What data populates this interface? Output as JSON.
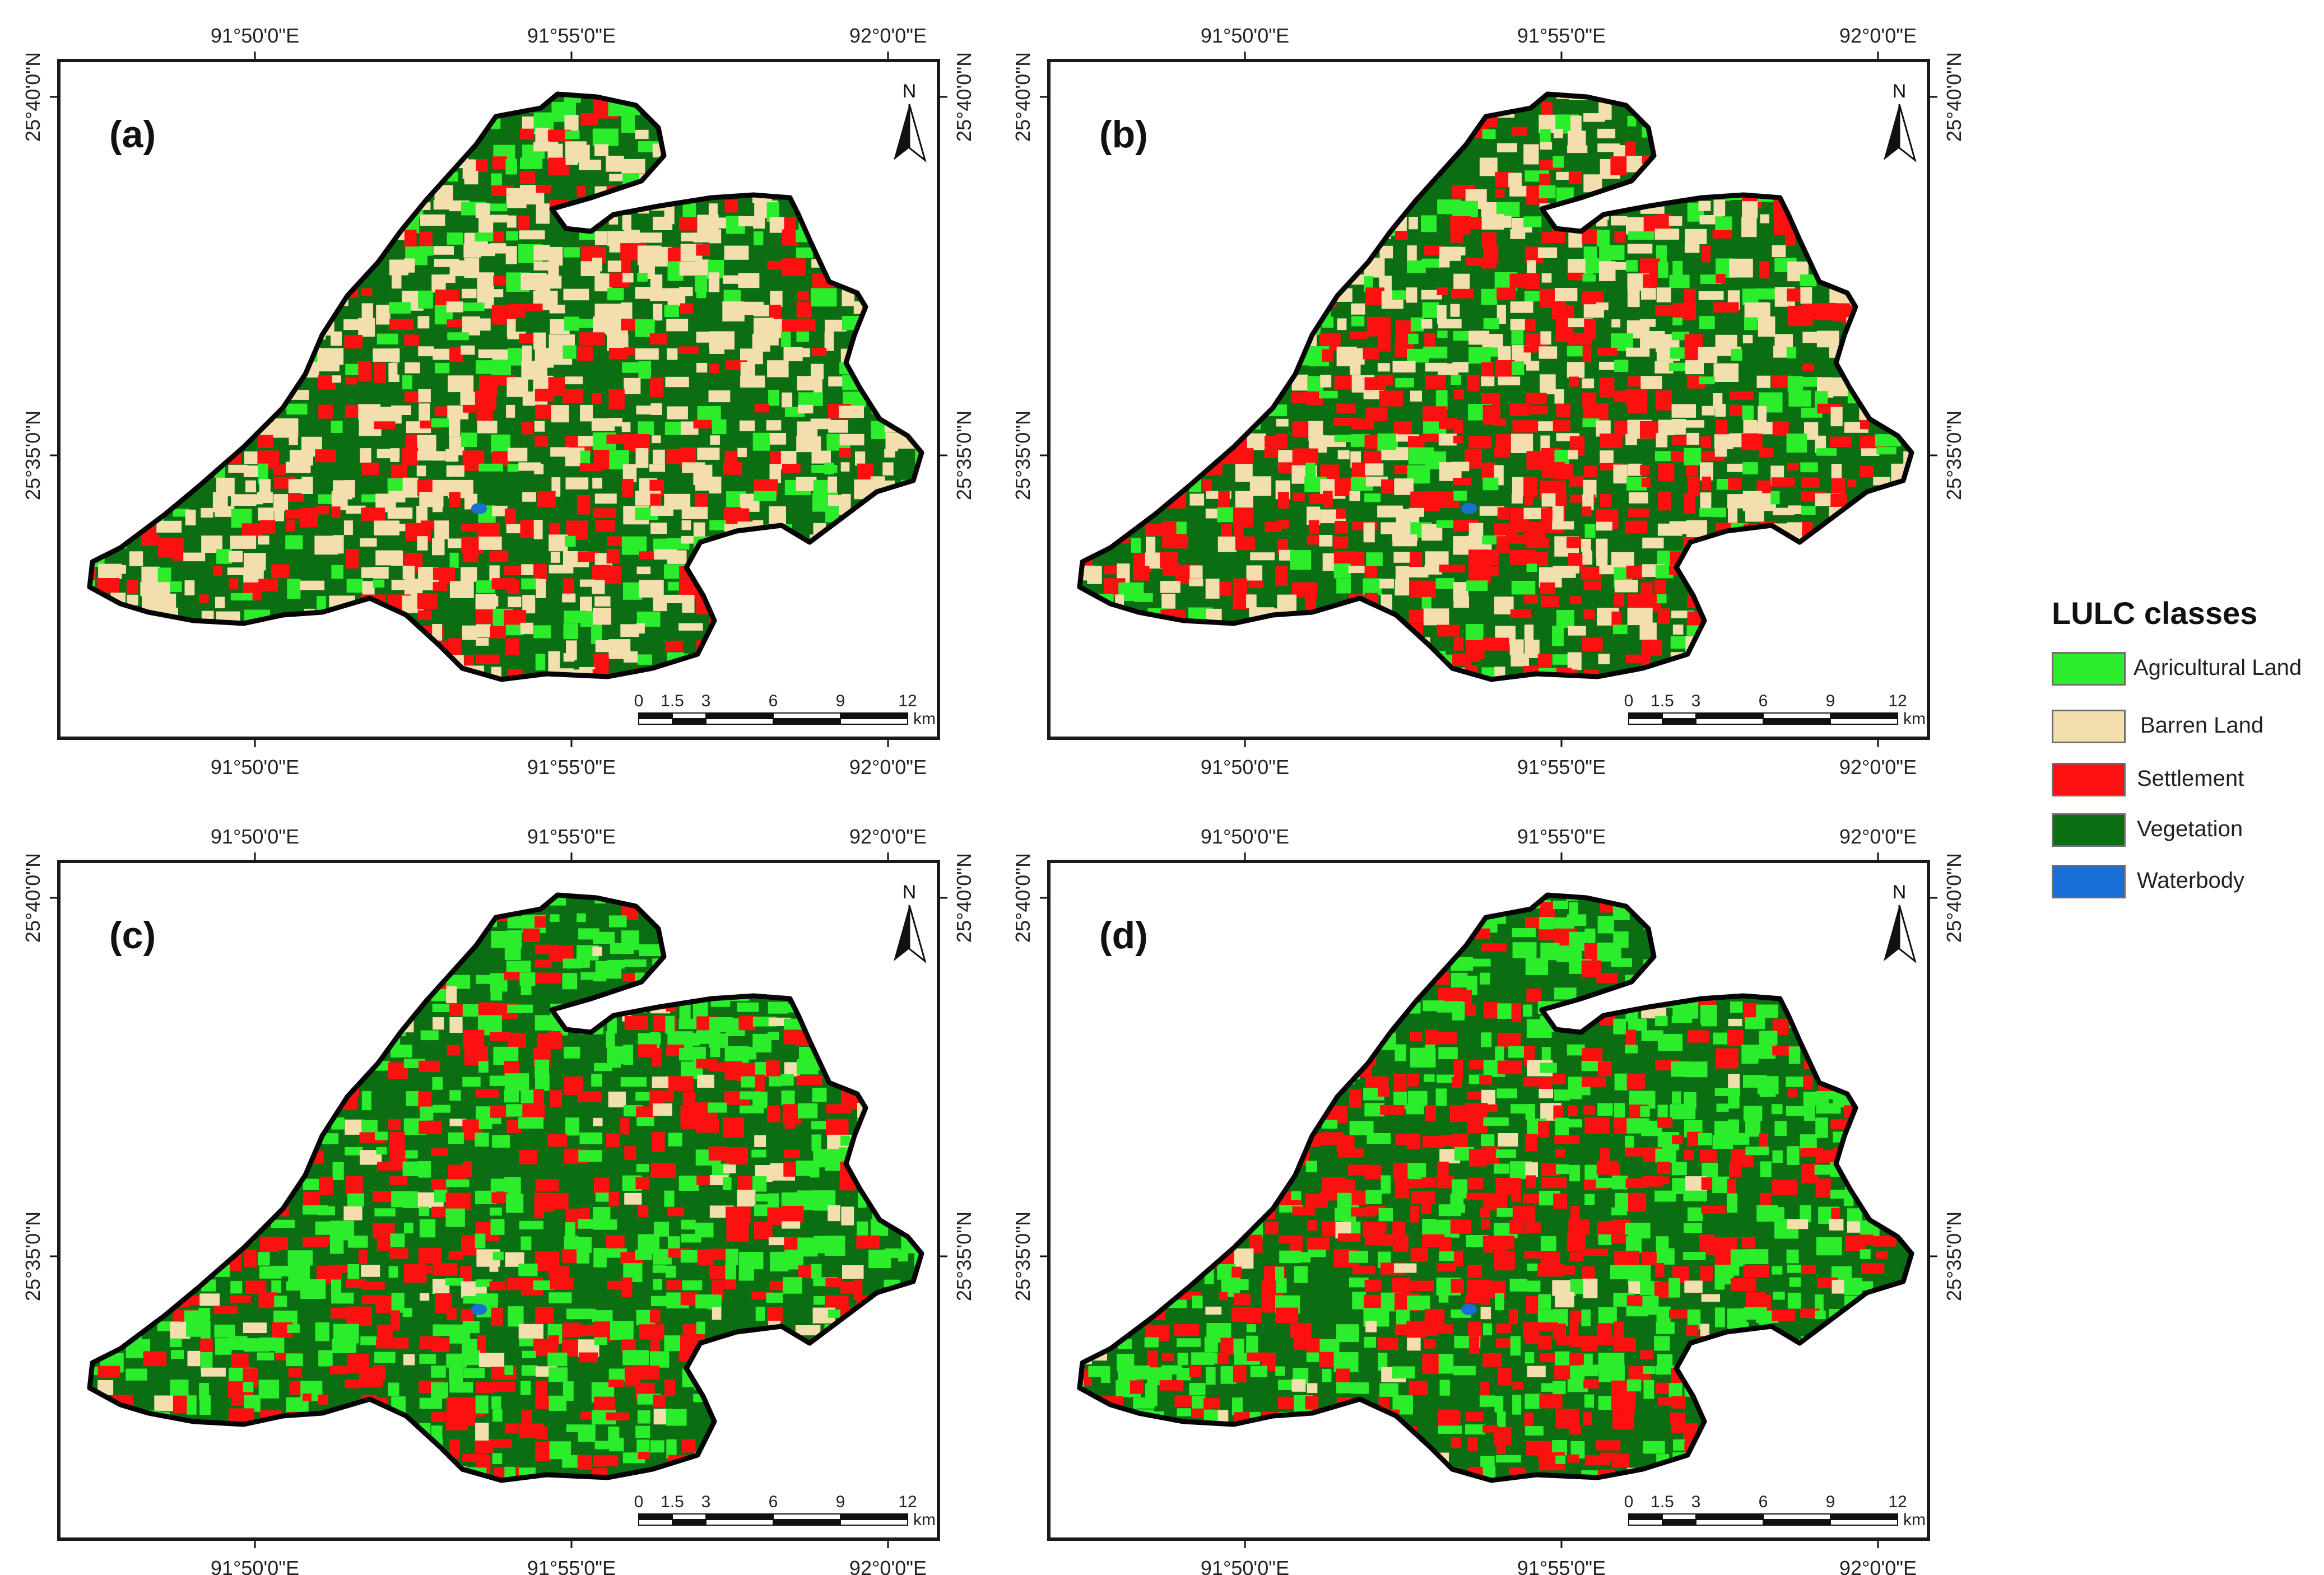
{
  "colors": {
    "agricultural_land": "#2ced2c",
    "barren_land": "#f2dfad",
    "settlement": "#ff1010",
    "vegetation": "#0c6e12",
    "waterbody": "#1a6fd6",
    "frame": "#1a1a1a",
    "outline": "#050505"
  },
  "legend": {
    "title": "LULC classes",
    "items": [
      {
        "label": "Agricultural Land",
        "class": "agricultural_land"
      },
      {
        "label": "Barren Land",
        "class": "barren_land"
      },
      {
        "label": "Settlement",
        "class": "settlement"
      },
      {
        "label": "Vegetation",
        "class": "vegetation"
      },
      {
        "label": "Waterbody",
        "class": "waterbody"
      }
    ]
  },
  "graticule": {
    "longitude_labels": [
      "91°50'0\"E",
      "91°55'0\"E",
      "92°0'0\"E"
    ],
    "latitude_labels": [
      "25°40'0\"N",
      "25°35'0\"N"
    ]
  },
  "scale_bar": {
    "ticks": [
      "0",
      "1.5",
      "3",
      "6",
      "9",
      "12"
    ],
    "unit": "km"
  },
  "north_arrow": "N",
  "panels": [
    {
      "label": "(a)",
      "mix": {
        "agricultural_land": 0.14,
        "barren_land": 0.33,
        "settlement": 0.1,
        "vegetation": 0.43
      }
    },
    {
      "label": "(b)",
      "mix": {
        "agricultural_land": 0.16,
        "barren_land": 0.25,
        "settlement": 0.14,
        "vegetation": 0.45
      }
    },
    {
      "label": "(c)",
      "mix": {
        "agricultural_land": 0.38,
        "barren_land": 0.06,
        "settlement": 0.12,
        "vegetation": 0.44
      }
    },
    {
      "label": "(d)",
      "mix": {
        "agricultural_land": 0.34,
        "barren_land": 0.03,
        "settlement": 0.16,
        "vegetation": 0.47
      }
    }
  ]
}
